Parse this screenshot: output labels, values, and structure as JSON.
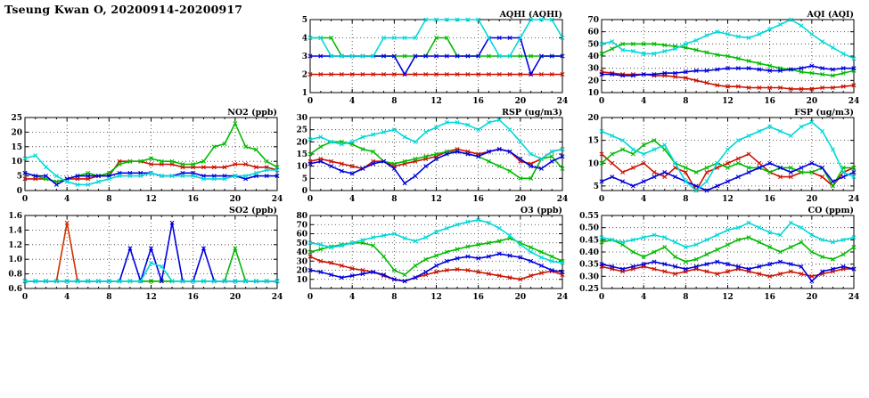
{
  "page_title": "Tseung Kwan O, 20200914-20200917",
  "x_axis": {
    "min": 0,
    "max": 24,
    "minor_step": 1,
    "ticks": [
      0,
      4,
      8,
      12,
      16,
      20,
      24
    ],
    "tick_labels": [
      "0",
      "4",
      "8",
      "12",
      "16",
      "20",
      "24"
    ]
  },
  "chart_data": [
    {
      "id": "aqhi",
      "type": "line",
      "title": "AQHI (AQHI)",
      "ymin": 1,
      "ymax": 5,
      "yticks": [
        1,
        2,
        3,
        4,
        5
      ],
      "ytick_labels": [
        "1",
        "2",
        "3",
        "4",
        "5"
      ],
      "series": [
        {
          "name": "red",
          "color": "#cc1100",
          "values": [
            2,
            2,
            2,
            2,
            2,
            2,
            2,
            2,
            2,
            2,
            2,
            2,
            2,
            2,
            2,
            2,
            2,
            2,
            2,
            2,
            2,
            2,
            2,
            2,
            2
          ]
        },
        {
          "name": "green",
          "color": "#00bb00",
          "values": [
            4,
            4,
            4,
            3,
            3,
            3,
            3,
            3,
            3,
            3,
            3,
            3,
            4,
            4,
            3,
            3,
            3,
            3,
            3,
            3,
            3,
            3,
            3,
            3,
            3
          ]
        },
        {
          "name": "blue",
          "color": "#0000dd",
          "values": [
            3,
            3,
            3,
            3,
            3,
            3,
            3,
            3,
            3,
            2,
            3,
            3,
            3,
            3,
            3,
            3,
            3,
            4,
            4,
            4,
            4,
            2,
            3,
            3,
            3
          ]
        },
        {
          "name": "cyan",
          "color": "#00d8d8",
          "values": [
            4,
            4,
            3,
            3,
            3,
            3,
            3,
            4,
            4,
            4,
            4,
            5,
            5,
            5,
            5,
            5,
            5,
            4,
            3,
            3,
            4,
            5,
            5,
            5,
            4
          ]
        }
      ]
    },
    {
      "id": "aqi",
      "type": "line",
      "title": "AQI (AQI)",
      "ymin": 10,
      "ymax": 70,
      "yticks": [
        10,
        20,
        30,
        40,
        50,
        60,
        70
      ],
      "ytick_labels": [
        "10",
        "20",
        "30",
        "40",
        "50",
        "60",
        "70"
      ],
      "series": [
        {
          "name": "red",
          "color": "#cc1100",
          "values": [
            27,
            26,
            25,
            25,
            25,
            24,
            24,
            23,
            22,
            20,
            18,
            16,
            15,
            15,
            14,
            14,
            14,
            14,
            13,
            13,
            13,
            14,
            14,
            15,
            16
          ]
        },
        {
          "name": "green",
          "color": "#00bb00",
          "values": [
            42,
            46,
            50,
            50,
            50,
            50,
            49,
            48,
            47,
            45,
            43,
            41,
            40,
            38,
            36,
            34,
            32,
            30,
            29,
            27,
            26,
            25,
            24,
            26,
            28
          ]
        },
        {
          "name": "blue",
          "color": "#0000dd",
          "values": [
            25,
            25,
            24,
            24,
            25,
            25,
            26,
            26,
            27,
            28,
            28,
            29,
            30,
            30,
            30,
            29,
            28,
            28,
            29,
            30,
            32,
            30,
            29,
            30,
            30
          ]
        },
        {
          "name": "cyan",
          "color": "#00d8d8",
          "values": [
            50,
            52,
            45,
            44,
            42,
            42,
            44,
            46,
            50,
            53,
            57,
            60,
            58,
            56,
            55,
            58,
            62,
            66,
            70,
            65,
            58,
            52,
            47,
            42,
            38
          ]
        }
      ]
    },
    {
      "id": "no2",
      "type": "line",
      "title": "NO2 (ppb)",
      "ymin": 0,
      "ymax": 25,
      "yticks": [
        0,
        5,
        10,
        15,
        20,
        25
      ],
      "ytick_labels": [
        "0",
        "5",
        "10",
        "15",
        "20",
        "25"
      ],
      "series": [
        {
          "name": "red",
          "color": "#cc1100",
          "values": [
            4,
            4,
            4,
            3,
            4,
            4,
            4,
            5,
            5,
            10,
            10,
            10,
            9,
            9,
            9,
            8,
            8,
            8,
            8,
            8,
            9,
            9,
            8,
            8,
            7
          ]
        },
        {
          "name": "green",
          "color": "#00bb00",
          "values": [
            6,
            5,
            4,
            3,
            4,
            5,
            6,
            5,
            6,
            9,
            10,
            10,
            11,
            10,
            10,
            9,
            9,
            10,
            15,
            16,
            23,
            15,
            14,
            10,
            8
          ]
        },
        {
          "name": "blue",
          "color": "#0000dd",
          "values": [
            6,
            5,
            5,
            2,
            4,
            5,
            5,
            5,
            5,
            6,
            6,
            6,
            6,
            5,
            5,
            6,
            6,
            5,
            5,
            5,
            5,
            4,
            5,
            5,
            5
          ]
        },
        {
          "name": "cyan",
          "color": "#00d8d8",
          "values": [
            11,
            12,
            8,
            5,
            3,
            2,
            2,
            3,
            4,
            5,
            5,
            5,
            6,
            5,
            5,
            5,
            5,
            4,
            4,
            4,
            5,
            5,
            6,
            7,
            7
          ]
        }
      ]
    },
    {
      "id": "rsp",
      "type": "line",
      "title": "RSP (ug/m3)",
      "ymin": 0,
      "ymax": 30,
      "yticks": [
        0,
        5,
        10,
        15,
        20,
        25,
        30
      ],
      "ytick_labels": [
        "0",
        "5",
        "10",
        "15",
        "20",
        "25",
        "30"
      ],
      "series": [
        {
          "name": "red",
          "color": "#cc1100",
          "values": [
            12,
            13,
            12,
            11,
            10,
            9,
            12,
            12,
            10,
            11,
            12,
            13,
            14,
            16,
            17,
            16,
            15,
            16,
            17,
            16,
            12,
            11,
            13,
            16,
            17
          ]
        },
        {
          "name": "green",
          "color": "#00bb00",
          "values": [
            15,
            18,
            20,
            20,
            19,
            17,
            16,
            12,
            11,
            12,
            13,
            14,
            15,
            16,
            16,
            15,
            14,
            12,
            10,
            8,
            5,
            5,
            13,
            14,
            9
          ]
        },
        {
          "name": "blue",
          "color": "#0000dd",
          "values": [
            11,
            12,
            10,
            8,
            7,
            9,
            11,
            12,
            9,
            3,
            6,
            10,
            13,
            15,
            16,
            15,
            14,
            16,
            17,
            16,
            13,
            10,
            9,
            12,
            14
          ]
        },
        {
          "name": "cyan",
          "color": "#00d8d8",
          "values": [
            21,
            22,
            20,
            19,
            20,
            22,
            23,
            24,
            25,
            22,
            20,
            24,
            26,
            28,
            28,
            27,
            25,
            28,
            29,
            25,
            20,
            15,
            13,
            16,
            17
          ]
        }
      ]
    },
    {
      "id": "fsp",
      "type": "line",
      "title": "FSP (ug/m3)",
      "ymin": 4,
      "ymax": 20,
      "yticks": [
        5,
        10,
        15,
        20
      ],
      "ytick_labels": [
        "5",
        "10",
        "15",
        "20"
      ],
      "series": [
        {
          "name": "red",
          "color": "#cc1100",
          "values": [
            12,
            10,
            8,
            9,
            10,
            8,
            7,
            9,
            8,
            4,
            8,
            9,
            10,
            11,
            12,
            10,
            8,
            7,
            7,
            8,
            8,
            7,
            5,
            8,
            9
          ]
        },
        {
          "name": "green",
          "color": "#00bb00",
          "values": [
            10,
            12,
            13,
            12,
            14,
            15,
            13,
            10,
            9,
            8,
            9,
            10,
            9,
            10,
            9,
            9,
            8,
            9,
            9,
            8,
            8,
            9,
            5,
            9,
            9
          ]
        },
        {
          "name": "blue",
          "color": "#0000dd",
          "values": [
            6,
            7,
            6,
            5,
            6,
            7,
            8,
            7,
            6,
            5,
            4,
            5,
            6,
            7,
            8,
            9,
            10,
            9,
            8,
            9,
            10,
            9,
            6,
            7,
            8
          ]
        },
        {
          "name": "cyan",
          "color": "#00d8d8",
          "values": [
            17,
            16,
            15,
            13,
            12,
            13,
            14,
            10,
            6,
            4,
            6,
            10,
            13,
            15,
            16,
            17,
            18,
            17,
            16,
            18,
            19,
            17,
            13,
            8,
            7
          ]
        }
      ]
    },
    {
      "id": "so2",
      "type": "line",
      "title": "SO2 (ppb)",
      "ymin": 0.6,
      "ymax": 1.6,
      "yticks": [
        0.6,
        0.8,
        1.0,
        1.2,
        1.4,
        1.6
      ],
      "ytick_labels": [
        "0.6",
        "0.8",
        "1.0",
        "1.2",
        "1.4",
        "1.6"
      ],
      "series": [
        {
          "name": "red",
          "color": "#cc3300",
          "values": [
            0.7,
            0.7,
            0.7,
            0.7,
            1.5,
            0.7,
            0.7,
            0.7,
            0.7,
            0.7,
            0.7,
            0.7,
            0.7,
            0.7,
            0.7,
            0.7,
            0.7,
            0.7,
            0.7,
            0.7,
            0.7,
            0.7,
            0.7,
            0.7,
            0.7
          ]
        },
        {
          "name": "green",
          "color": "#00bb00",
          "values": [
            0.7,
            0.7,
            0.7,
            0.7,
            0.7,
            0.7,
            0.7,
            0.7,
            0.7,
            0.7,
            0.7,
            0.7,
            0.7,
            0.7,
            0.7,
            0.7,
            0.7,
            0.7,
            0.7,
            0.7,
            1.15,
            0.7,
            0.7,
            0.7,
            0.7
          ]
        },
        {
          "name": "blue",
          "color": "#0000dd",
          "values": [
            0.7,
            0.7,
            0.7,
            0.7,
            0.7,
            0.7,
            0.7,
            0.7,
            0.7,
            0.7,
            1.15,
            0.7,
            1.15,
            0.7,
            1.5,
            0.7,
            0.7,
            1.15,
            0.7,
            0.7,
            0.7,
            0.7,
            0.7,
            0.7,
            0.7
          ]
        },
        {
          "name": "cyan",
          "color": "#00d8d8",
          "values": [
            0.7,
            0.7,
            0.7,
            0.7,
            0.7,
            0.7,
            0.7,
            0.7,
            0.7,
            0.7,
            0.7,
            0.7,
            0.95,
            0.9,
            0.7,
            0.7,
            0.7,
            0.7,
            0.7,
            0.7,
            0.7,
            0.7,
            0.7,
            0.7,
            0.7
          ]
        }
      ]
    },
    {
      "id": "o3",
      "type": "line",
      "title": "O3 (ppb)",
      "ymin": 0,
      "ymax": 80,
      "yticks": [
        10,
        20,
        30,
        40,
        50,
        60,
        70,
        80
      ],
      "ytick_labels": [
        "10",
        "20",
        "30",
        "40",
        "50",
        "60",
        "70",
        "80"
      ],
      "series": [
        {
          "name": "red",
          "color": "#cc1100",
          "values": [
            35,
            30,
            28,
            25,
            22,
            20,
            18,
            14,
            10,
            8,
            12,
            15,
            18,
            20,
            21,
            20,
            18,
            16,
            14,
            12,
            10,
            14,
            17,
            19,
            15
          ]
        },
        {
          "name": "green",
          "color": "#00bb00",
          "values": [
            40,
            43,
            46,
            48,
            50,
            50,
            47,
            35,
            20,
            15,
            25,
            32,
            36,
            40,
            43,
            46,
            48,
            50,
            52,
            55,
            50,
            45,
            40,
            35,
            30
          ]
        },
        {
          "name": "blue",
          "color": "#0000dd",
          "values": [
            20,
            18,
            15,
            12,
            14,
            16,
            18,
            15,
            10,
            8,
            12,
            18,
            25,
            30,
            33,
            35,
            33,
            35,
            38,
            36,
            34,
            30,
            25,
            20,
            18
          ]
        },
        {
          "name": "cyan",
          "color": "#00d8d8",
          "values": [
            50,
            48,
            45,
            47,
            50,
            53,
            56,
            58,
            60,
            55,
            52,
            56,
            62,
            66,
            70,
            73,
            75,
            72,
            66,
            58,
            48,
            40,
            34,
            30,
            28
          ]
        }
      ]
    },
    {
      "id": "co",
      "type": "line",
      "title": "CO (ppm)",
      "ymin": 0.25,
      "ymax": 0.55,
      "yticks": [
        0.25,
        0.3,
        0.35,
        0.4,
        0.45,
        0.5,
        0.55
      ],
      "ytick_labels": [
        "0.25",
        "0.30",
        "0.35",
        "0.40",
        "0.45",
        "0.50",
        "0.55"
      ],
      "series": [
        {
          "name": "red",
          "color": "#cc1100",
          "values": [
            0.34,
            0.33,
            0.32,
            0.33,
            0.34,
            0.33,
            0.32,
            0.31,
            0.32,
            0.33,
            0.32,
            0.31,
            0.32,
            0.33,
            0.32,
            0.31,
            0.3,
            0.31,
            0.32,
            0.31,
            0.3,
            0.31,
            0.32,
            0.33,
            0.33
          ]
        },
        {
          "name": "green",
          "color": "#00bb00",
          "values": [
            0.44,
            0.45,
            0.43,
            0.4,
            0.38,
            0.4,
            0.42,
            0.38,
            0.36,
            0.37,
            0.39,
            0.41,
            0.43,
            0.45,
            0.46,
            0.44,
            0.42,
            0.4,
            0.42,
            0.44,
            0.4,
            0.38,
            0.37,
            0.39,
            0.42
          ]
        },
        {
          "name": "blue",
          "color": "#0000dd",
          "values": [
            0.35,
            0.34,
            0.33,
            0.34,
            0.35,
            0.36,
            0.35,
            0.34,
            0.33,
            0.34,
            0.35,
            0.36,
            0.35,
            0.34,
            0.33,
            0.34,
            0.35,
            0.36,
            0.35,
            0.34,
            0.28,
            0.32,
            0.33,
            0.34,
            0.33
          ]
        },
        {
          "name": "cyan",
          "color": "#00d8d8",
          "values": [
            0.46,
            0.45,
            0.44,
            0.45,
            0.46,
            0.47,
            0.46,
            0.44,
            0.42,
            0.43,
            0.45,
            0.47,
            0.49,
            0.5,
            0.52,
            0.5,
            0.48,
            0.47,
            0.52,
            0.5,
            0.47,
            0.45,
            0.44,
            0.45,
            0.46
          ]
        }
      ]
    }
  ]
}
